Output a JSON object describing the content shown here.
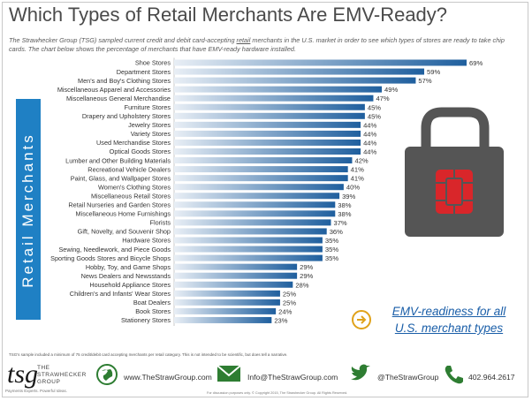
{
  "header": {
    "title": "Which Types of Retail Merchants Are EMV-Ready?",
    "subtitle_before": "The Strawhecker Group (TSG) sampled current credit and debit card-accepting ",
    "subtitle_link": "retail",
    "subtitle_after": " merchants in the U.S. market in order to see which types of stores are ready to take chip cards. The chart below shows the percentage of merchants that have EMV-ready hardware installed."
  },
  "side_label": "Retail Merchants",
  "callout": {
    "text_line1": "EMV-readiness for all",
    "text_line2": "U.S. merchant types"
  },
  "footnote": "TSG's sample included a minimum of 75 credit/debit card accepting merchants per retail category. This is not intended to be scientific, but does tell a narrative.",
  "footer": {
    "logo_mark": "tsg",
    "logo_line1": "THE",
    "logo_line2": "STRAWHECKER",
    "logo_line3": "GROUP",
    "tagline": "Payments Experts. Powerful Ideas.",
    "website": "www.TheStrawGroup.com",
    "email": "Info@TheStrawGroup.com",
    "twitter": "@TheStrawGroup",
    "phone": "402.964.2617",
    "disclaimer": "For discussion purposes only. © Copyright 2015, The Strawhecker Group. All Rights Reserved."
  },
  "colors": {
    "side_band": "#1f80c4",
    "bar_dark": "#1f5f9e",
    "bar_light": "#e8eef5",
    "lock_red": "#d9262a",
    "lock_gray": "#555555"
  },
  "chart_data": {
    "type": "bar",
    "orientation": "horizontal",
    "categories": [
      "Shoe Stores",
      "Department Stores",
      "Men's and Boy's Clothing Stores",
      "Miscellaneous Apparel and Accessories",
      "Miscellaneous General Merchandise",
      "Furniture Stores",
      "Drapery and Upholstery Stores",
      "Jewelry Stores",
      "Variety Stores",
      "Used Merchandise Stores",
      "Optical Goods Stores",
      "Lumber and Other Building Materials",
      "Recreational Vehicle Dealers",
      "Paint, Glass, and Wallpaper Stores",
      "Women's Clothing Stores",
      "Miscellaneous Retail Stores",
      "Retail Nurseries and Garden Stores",
      "Miscellaneous Home Furnishings",
      "Florists",
      "Gift, Novelty, and Souvenir Shop",
      "Hardware Stores",
      "Sewing, Needlework, and Piece Goods",
      "Sporting Goods Stores and Bicycle Shops",
      "Hobby, Toy, and Game Shops",
      "News Dealers and Newsstands",
      "Household Appliance Stores",
      "Children's and Infants' Wear Stores",
      "Boat Dealers",
      "Book Stores",
      "Stationery Stores"
    ],
    "values": [
      69,
      59,
      57,
      49,
      47,
      45,
      45,
      44,
      44,
      44,
      44,
      42,
      41,
      41,
      40,
      39,
      38,
      38,
      37,
      36,
      35,
      35,
      35,
      29,
      29,
      28,
      25,
      25,
      24,
      23
    ],
    "value_labels": [
      "69%",
      "59%",
      "57%",
      "49%",
      "47%",
      "45%",
      "45%",
      "44%",
      "44%",
      "44%",
      "44%",
      "42%",
      "41%",
      "41%",
      "40%",
      "39%",
      "38%",
      "38%",
      "37%",
      "36%",
      "35%",
      "35%",
      "35%",
      "29%",
      "29%",
      "28%",
      "25%",
      "25%",
      "24%",
      "23%"
    ],
    "xlim": [
      0,
      72
    ]
  }
}
